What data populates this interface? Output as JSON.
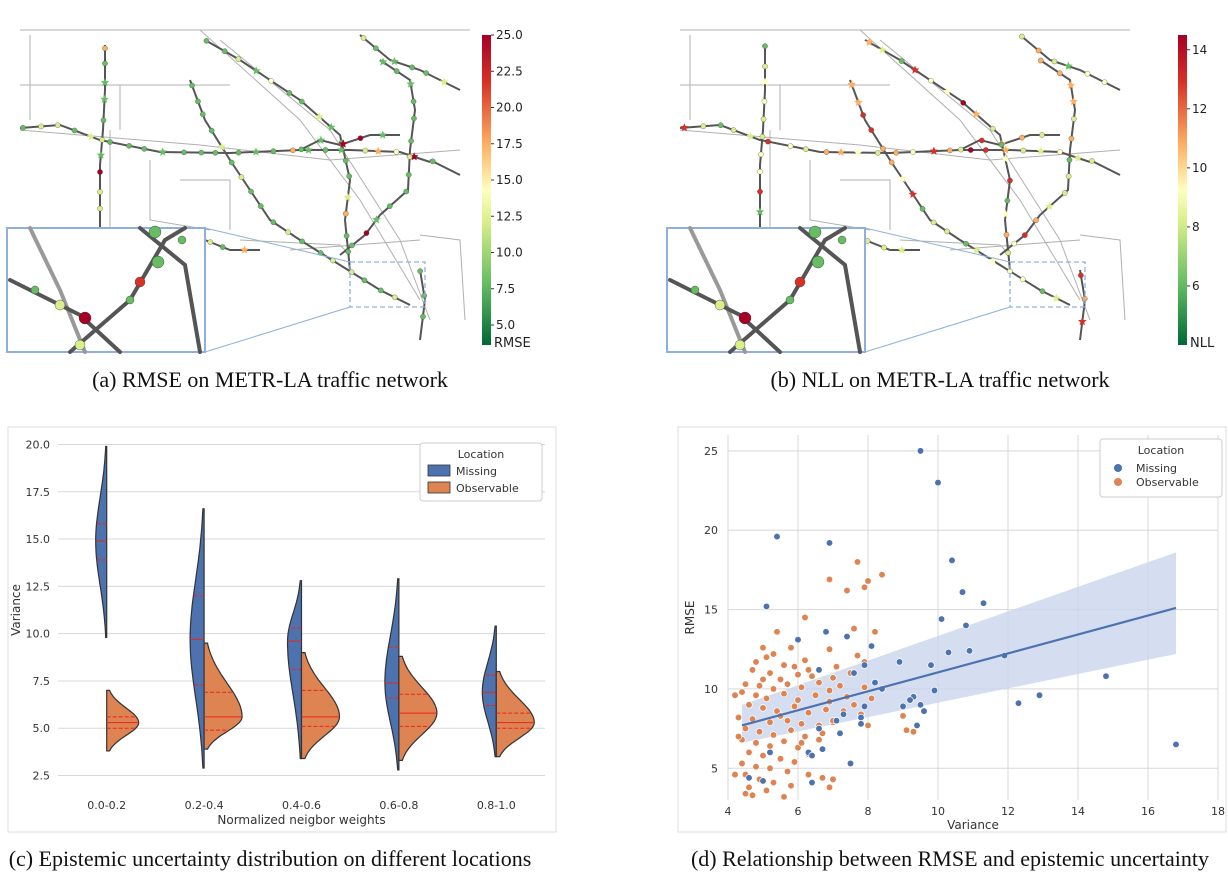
{
  "colors": {
    "missing": "#4c72b0",
    "observable": "#dd8452",
    "road": "#555555",
    "road_light": "#b0b0b0",
    "median_line": "#e8261c",
    "inset_border": "#8fb0dc",
    "fit_band": "#c9d6ec"
  },
  "panel_a": {
    "caption": "(a) RMSE on METR-LA traffic network",
    "colorbar": {
      "min": 5.0,
      "max": 25.0,
      "ticks": [
        "25.0",
        "22.5",
        "20.0",
        "17.5",
        "15.0",
        "12.5",
        "10.0",
        "7.5",
        "5.0"
      ],
      "label": "RMSE",
      "colormap": "RdYlGn_r"
    }
  },
  "panel_b": {
    "caption": "(b) NLL on METR-LA traffic network",
    "colorbar": {
      "min": 4,
      "max": 14.5,
      "ticks": [
        "14",
        "12",
        "10",
        "8",
        "6"
      ],
      "label": "NLL",
      "colormap": "RdYlGn_r"
    }
  },
  "panel_c": {
    "caption": "(c) Epistemic uncertainty distribution on different locations",
    "chart_data": {
      "type": "violin",
      "split": true,
      "xlabel": "Normalized neigbor weights",
      "ylabel": "Variance",
      "categories": [
        "0.0-0.2",
        "0.2-0.4",
        "0.4-0.6",
        "0.6-0.8",
        "0.8-1.0"
      ],
      "ylim": [
        2,
        20.5
      ],
      "yticks": [
        "2.5",
        "5.0",
        "7.5",
        "10.0",
        "12.5",
        "15.0",
        "17.5",
        "20.0"
      ],
      "legend": {
        "title": "Location",
        "placement": "top-right",
        "entries": [
          "Missing",
          "Observable"
        ]
      },
      "series": [
        {
          "name": "Missing",
          "side": "left",
          "ranges": [
            [
              9.8,
              19.9
            ],
            [
              2.9,
              16.6
            ],
            [
              3.4,
              12.8
            ],
            [
              2.8,
              12.9
            ],
            [
              3.5,
              10.4
            ]
          ],
          "quartiles": [
            [
              13.9,
              14.9,
              15.8
            ],
            [
              7.3,
              9.7,
              12.0
            ],
            [
              8.1,
              9.6,
              10.3
            ],
            [
              6.6,
              7.4,
              9.3
            ],
            [
              6.2,
              6.9,
              7.8
            ]
          ]
        },
        {
          "name": "Observable",
          "side": "right",
          "ranges": [
            [
              3.8,
              7.0
            ],
            [
              3.9,
              9.5
            ],
            [
              3.4,
              9.0
            ],
            [
              3.3,
              8.8
            ],
            [
              3.5,
              8.0
            ]
          ],
          "quartiles": [
            [
              5.0,
              5.3,
              5.6
            ],
            [
              4.9,
              5.6,
              6.9
            ],
            [
              5.1,
              5.6,
              7.0
            ],
            [
              5.1,
              5.8,
              6.8
            ],
            [
              5.0,
              5.3,
              5.8
            ]
          ]
        }
      ],
      "grid": "horizontal"
    }
  },
  "panel_d": {
    "caption": "(d) Relationship between RMSE and epistemic uncertainty",
    "chart_data": {
      "type": "scatter",
      "xlabel": "Variance",
      "ylabel": "RMSE",
      "xlim": [
        4,
        18
      ],
      "ylim": [
        3,
        26
      ],
      "xticks": [
        "4",
        "6",
        "8",
        "10",
        "12",
        "14",
        "16",
        "18"
      ],
      "yticks": [
        "5",
        "10",
        "15",
        "20",
        "25"
      ],
      "grid": "both",
      "legend": {
        "title": "Location",
        "placement": "top-right",
        "entries": [
          "Missing",
          "Observable"
        ]
      },
      "regression": {
        "x": [
          4.4,
          16.8
        ],
        "y": [
          7.7,
          15.1
        ],
        "band_upper": [
          9.0,
          18.6
        ],
        "band_lower": [
          6.6,
          12.2
        ]
      },
      "series": [
        {
          "name": "Missing",
          "points": [
            [
              9.5,
              25.0
            ],
            [
              10.0,
              23.0
            ],
            [
              5.4,
              19.6
            ],
            [
              6.9,
              19.2
            ],
            [
              10.4,
              18.1
            ],
            [
              10.7,
              16.1
            ],
            [
              5.1,
              15.2
            ],
            [
              11.3,
              15.4
            ],
            [
              10.1,
              14.4
            ],
            [
              10.8,
              14.0
            ],
            [
              6.8,
              13.6
            ],
            [
              7.4,
              13.3
            ],
            [
              6.0,
              13.1
            ],
            [
              8.1,
              12.7
            ],
            [
              10.3,
              12.3
            ],
            [
              10.9,
              12.4
            ],
            [
              11.9,
              12.1
            ],
            [
              8.9,
              11.7
            ],
            [
              7.9,
              11.5
            ],
            [
              9.8,
              11.5
            ],
            [
              6.6,
              11.2
            ],
            [
              7.6,
              11.0
            ],
            [
              8.2,
              10.4
            ],
            [
              14.8,
              10.8
            ],
            [
              8.4,
              10.0
            ],
            [
              9.3,
              9.5
            ],
            [
              9.9,
              9.9
            ],
            [
              9.5,
              9.0
            ],
            [
              7.9,
              8.9
            ],
            [
              12.3,
              9.1
            ],
            [
              12.9,
              9.6
            ],
            [
              9.2,
              9.3
            ],
            [
              7.3,
              8.4
            ],
            [
              7.8,
              8.2
            ],
            [
              9.6,
              8.6
            ],
            [
              7.1,
              8.0
            ],
            [
              6.6,
              7.5
            ],
            [
              7.2,
              7.2
            ],
            [
              9.0,
              8.9
            ],
            [
              6.3,
              6.0
            ],
            [
              6.7,
              6.2
            ],
            [
              6.4,
              5.8
            ],
            [
              7.5,
              5.3
            ],
            [
              6.4,
              4.1
            ],
            [
              5.0,
              4.2
            ],
            [
              4.6,
              4.4
            ],
            [
              16.8,
              6.5
            ],
            [
              7.8,
              7.8
            ],
            [
              9.4,
              7.7
            ],
            [
              5.2,
              6.0
            ]
          ]
        },
        {
          "name": "Observable",
          "points": [
            [
              7.7,
              18.0
            ],
            [
              7.4,
              16.2
            ],
            [
              8.4,
              17.2
            ],
            [
              6.9,
              16.9
            ],
            [
              8.0,
              16.8
            ],
            [
              7.9,
              16.4
            ],
            [
              6.2,
              14.5
            ],
            [
              7.6,
              13.8
            ],
            [
              5.4,
              13.6
            ],
            [
              5.0,
              12.6
            ],
            [
              5.3,
              12.2
            ],
            [
              5.8,
              12.6
            ],
            [
              6.9,
              12.5
            ],
            [
              5.1,
              12.0
            ],
            [
              4.8,
              11.7
            ],
            [
              5.6,
              11.5
            ],
            [
              6.2,
              11.8
            ],
            [
              7.1,
              11.4
            ],
            [
              7.7,
              12.1
            ],
            [
              4.7,
              11.2
            ],
            [
              5.2,
              11.0
            ],
            [
              5.5,
              10.6
            ],
            [
              6.0,
              10.9
            ],
            [
              6.4,
              10.8
            ],
            [
              7.0,
              10.7
            ],
            [
              7.5,
              11.0
            ],
            [
              4.5,
              10.3
            ],
            [
              4.9,
              10.2
            ],
            [
              5.3,
              10.0
            ],
            [
              5.7,
              10.3
            ],
            [
              6.1,
              10.1
            ],
            [
              6.6,
              10.4
            ],
            [
              7.2,
              10.2
            ],
            [
              7.9,
              10.1
            ],
            [
              4.4,
              9.8
            ],
            [
              4.8,
              9.6
            ],
            [
              5.1,
              9.4
            ],
            [
              5.6,
              9.7
            ],
            [
              6.0,
              9.3
            ],
            [
              6.5,
              9.6
            ],
            [
              6.9,
              9.2
            ],
            [
              7.4,
              9.5
            ],
            [
              8.1,
              9.4
            ],
            [
              4.6,
              9.0
            ],
            [
              5.0,
              8.8
            ],
            [
              5.4,
              8.6
            ],
            [
              5.9,
              8.9
            ],
            [
              6.3,
              8.5
            ],
            [
              6.8,
              8.7
            ],
            [
              7.3,
              8.6
            ],
            [
              7.8,
              8.4
            ],
            [
              4.3,
              8.2
            ],
            [
              4.7,
              8.1
            ],
            [
              5.2,
              7.9
            ],
            [
              5.7,
              8.0
            ],
            [
              6.1,
              7.8
            ],
            [
              6.6,
              7.7
            ],
            [
              7.0,
              7.9
            ],
            [
              4.5,
              7.5
            ],
            [
              4.9,
              7.3
            ],
            [
              5.3,
              7.1
            ],
            [
              5.8,
              7.4
            ],
            [
              6.2,
              7.0
            ],
            [
              6.7,
              7.2
            ],
            [
              4.4,
              6.8
            ],
            [
              4.8,
              6.6
            ],
            [
              5.2,
              6.4
            ],
            [
              5.6,
              6.7
            ],
            [
              6.0,
              6.3
            ],
            [
              4.6,
              6.0
            ],
            [
              5.0,
              5.8
            ],
            [
              5.5,
              5.6
            ],
            [
              5.9,
              5.4
            ],
            [
              4.4,
              5.3
            ],
            [
              4.8,
              5.1
            ],
            [
              5.2,
              5.0
            ],
            [
              5.7,
              4.8
            ],
            [
              6.3,
              4.6
            ],
            [
              4.5,
              4.6
            ],
            [
              4.9,
              4.3
            ],
            [
              5.3,
              4.1
            ],
            [
              5.8,
              3.9
            ],
            [
              4.6,
              3.8
            ],
            [
              5.1,
              3.6
            ],
            [
              4.7,
              3.3
            ],
            [
              5.6,
              3.2
            ],
            [
              6.7,
              4.4
            ],
            [
              6.9,
              3.8
            ],
            [
              7.0,
              4.3
            ],
            [
              6.1,
              6.6
            ],
            [
              6.6,
              6.8
            ],
            [
              7.9,
              11.7
            ],
            [
              8.2,
              13.6
            ],
            [
              9.0,
              8.3
            ],
            [
              9.1,
              7.4
            ],
            [
              9.3,
              7.3
            ],
            [
              7.0,
              8.0
            ],
            [
              5.9,
              11.4
            ],
            [
              5.0,
              10.6
            ],
            [
              4.2,
              9.6
            ],
            [
              4.3,
              7.0
            ],
            [
              4.2,
              4.6
            ],
            [
              4.5,
              3.4
            ],
            [
              6.3,
              5.9
            ],
            [
              5.5,
              8.3
            ],
            [
              6.9,
              9.9
            ],
            [
              7.6,
              9.0
            ],
            [
              8.0,
              7.7
            ],
            [
              6.3,
              11.2
            ]
          ]
        }
      ]
    }
  }
}
